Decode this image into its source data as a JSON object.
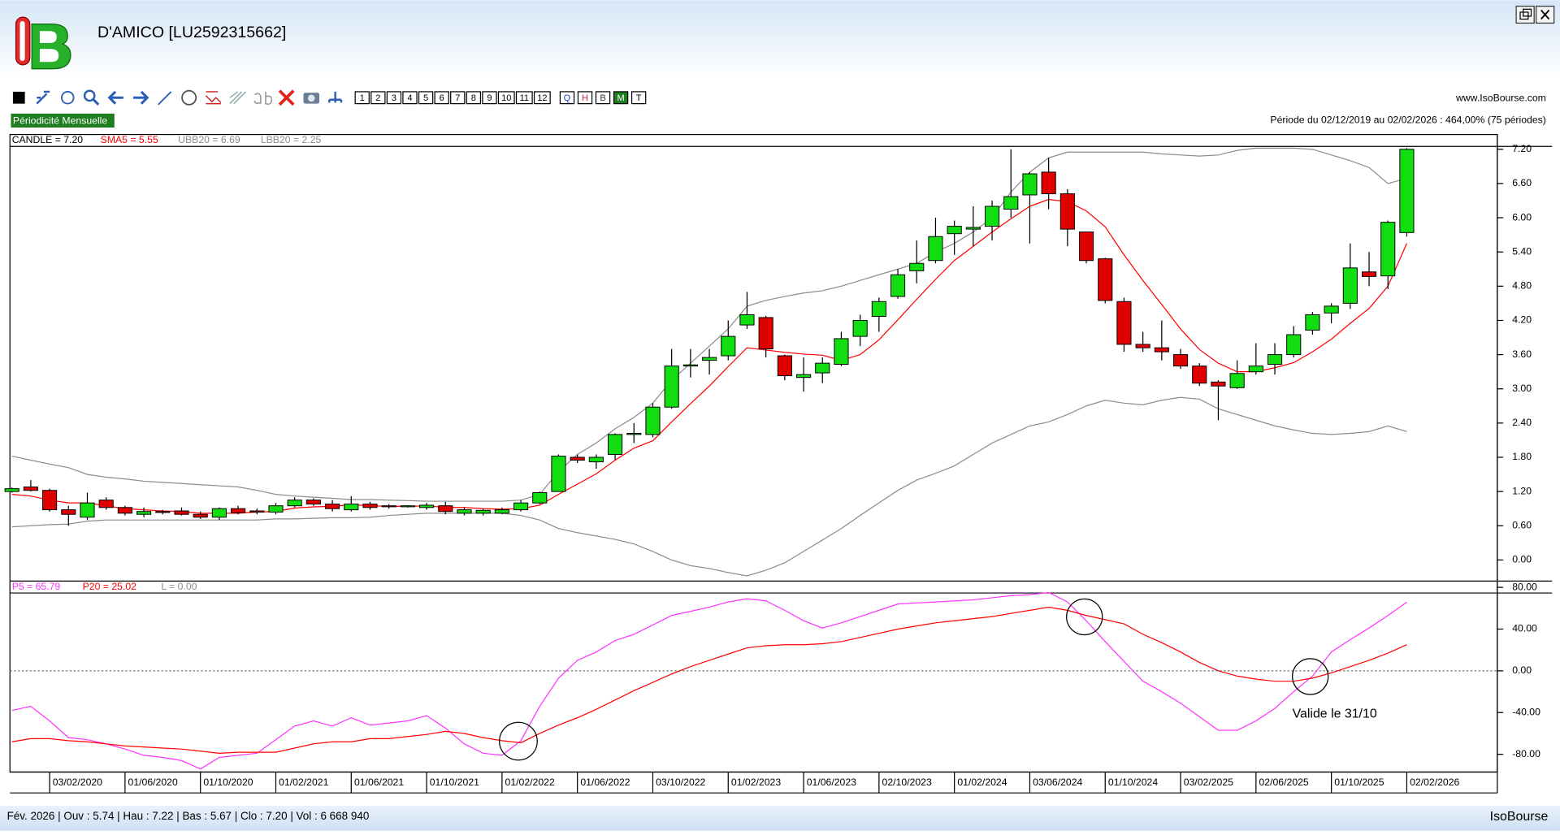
{
  "header": {
    "title": "D'AMICO [LU2592315662]",
    "site": "www.IsoBourse.com",
    "periodicity": "Périodicité Mensuelle",
    "period_info": "Période du 02/12/2019 au 02/02/2026 : 464,00% (75 périodes)"
  },
  "toolbar": {
    "periods": [
      "1",
      "2",
      "3",
      "4",
      "5",
      "6",
      "7",
      "8",
      "9",
      "10",
      "11",
      "12"
    ],
    "modes": [
      "Q",
      "H",
      "B",
      "M",
      "T"
    ],
    "active_mode": "M"
  },
  "status_bar": {
    "text": "Fév. 2026 | Ouv : 5.74 | Hau : 7.22 | Bas : 5.67 | Clo : 7.20 | Vol : 6 668 940",
    "brand": "IsoBourse"
  },
  "chart_data": [
    {
      "type": "candlestick",
      "candle_label": "CANDLE = 7.20",
      "up_color": "#11dd11",
      "down_color": "#e00000",
      "categories": [
        null,
        null,
        "03/02/2020",
        null,
        null,
        null,
        "01/06/2020",
        null,
        null,
        null,
        "01/10/2020",
        null,
        null,
        null,
        "01/02/2021",
        null,
        null,
        null,
        "01/06/2021",
        null,
        null,
        null,
        "01/10/2021",
        null,
        null,
        null,
        "01/02/2022",
        null,
        null,
        null,
        "01/06/2022",
        null,
        null,
        null,
        "03/10/2022",
        null,
        null,
        null,
        "01/02/2023",
        null,
        null,
        null,
        "01/06/2023",
        null,
        null,
        null,
        "02/10/2023",
        null,
        null,
        null,
        "01/02/2024",
        null,
        null,
        null,
        "03/06/2024",
        null,
        null,
        null,
        "01/10/2024",
        null,
        null,
        null,
        "03/02/2025",
        null,
        null,
        null,
        "02/06/2025",
        null,
        null,
        null,
        "01/10/2025",
        null,
        null,
        null,
        "02/02/2026"
      ],
      "open": [
        1.2,
        1.28,
        1.22,
        0.88,
        0.75,
        1.05,
        0.92,
        0.8,
        0.85,
        0.86,
        0.8,
        0.75,
        0.9,
        0.86,
        0.84,
        0.95,
        1.05,
        0.98,
        0.88,
        0.98,
        0.95,
        0.95,
        0.92,
        0.95,
        0.82,
        0.82,
        0.82,
        0.88,
        1.0,
        1.2,
        1.8,
        1.72,
        1.85,
        2.2,
        2.2,
        2.68,
        3.4,
        3.5,
        3.58,
        4.12,
        4.25,
        3.58,
        3.2,
        3.28,
        3.43,
        3.92,
        4.27,
        4.62,
        5.07,
        5.25,
        5.72,
        5.8,
        5.85,
        6.15,
        6.4,
        6.8,
        6.42,
        5.75,
        5.28,
        4.53,
        3.78,
        3.72,
        3.6,
        3.4,
        3.12,
        3.02,
        3.3,
        3.43,
        3.6,
        4.03,
        4.33,
        4.5,
        5.05,
        4.98,
        5.74
      ],
      "high": [
        1.27,
        1.4,
        1.25,
        0.95,
        1.18,
        1.1,
        0.95,
        0.92,
        0.88,
        0.92,
        0.85,
        0.92,
        0.95,
        0.9,
        1.0,
        1.1,
        1.08,
        1.05,
        1.12,
        1.02,
        0.98,
        0.96,
        1.0,
        1.02,
        0.92,
        0.9,
        0.92,
        1.05,
        1.2,
        1.85,
        1.85,
        1.85,
        2.22,
        2.4,
        2.75,
        3.7,
        3.7,
        3.7,
        4.2,
        4.7,
        4.28,
        3.6,
        3.55,
        3.55,
        4.0,
        4.3,
        4.6,
        5.1,
        5.6,
        6.0,
        5.95,
        6.2,
        6.3,
        7.2,
        6.8,
        7.05,
        6.5,
        5.75,
        5.3,
        4.6,
        4.0,
        4.2,
        3.7,
        3.45,
        3.15,
        3.5,
        3.8,
        3.8,
        4.1,
        4.35,
        4.5,
        5.55,
        5.4,
        5.95,
        7.22
      ],
      "low": [
        1.18,
        1.2,
        0.85,
        0.6,
        0.7,
        0.88,
        0.78,
        0.75,
        0.8,
        0.78,
        0.72,
        0.7,
        0.8,
        0.8,
        0.8,
        0.92,
        0.95,
        0.85,
        0.85,
        0.88,
        0.9,
        0.92,
        0.88,
        0.8,
        0.78,
        0.78,
        0.8,
        0.85,
        0.98,
        1.2,
        1.7,
        1.6,
        1.75,
        2.05,
        2.15,
        2.65,
        3.2,
        3.25,
        3.5,
        4.05,
        3.55,
        3.15,
        2.95,
        3.1,
        3.4,
        3.75,
        4.0,
        4.58,
        4.85,
        5.2,
        5.35,
        5.5,
        5.6,
        6.0,
        5.55,
        6.15,
        5.5,
        5.2,
        4.5,
        3.65,
        3.65,
        3.5,
        3.35,
        3.05,
        2.45,
        3.0,
        3.25,
        3.25,
        3.55,
        3.95,
        4.15,
        4.4,
        4.8,
        4.75,
        5.67
      ],
      "close": [
        1.25,
        1.22,
        0.88,
        0.8,
        1.0,
        0.92,
        0.82,
        0.85,
        0.84,
        0.8,
        0.75,
        0.9,
        0.83,
        0.84,
        0.95,
        1.05,
        0.98,
        0.9,
        0.98,
        0.92,
        0.94,
        0.95,
        0.96,
        0.85,
        0.88,
        0.87,
        0.88,
        1.0,
        1.18,
        1.82,
        1.75,
        1.8,
        2.2,
        2.22,
        2.68,
        3.4,
        3.42,
        3.55,
        3.92,
        4.3,
        3.7,
        3.23,
        3.25,
        3.45,
        3.88,
        4.2,
        4.53,
        5.0,
        5.2,
        5.67,
        5.85,
        5.83,
        6.2,
        6.37,
        6.77,
        6.42,
        5.8,
        5.25,
        4.55,
        3.78,
        3.72,
        3.65,
        3.4,
        3.1,
        3.05,
        3.27,
        3.4,
        3.6,
        3.95,
        4.3,
        4.45,
        5.12,
        4.97,
        5.92,
        7.2
      ],
      "series": [
        {
          "name": "SMA5 = 5.55",
          "color": "#ff0000",
          "values": [
            1.15,
            1.12,
            1.05,
            1.0,
            1.0,
            0.95,
            0.9,
            0.88,
            0.86,
            0.85,
            0.82,
            0.82,
            0.82,
            0.84,
            0.85,
            0.91,
            0.93,
            0.94,
            0.97,
            0.95,
            0.94,
            0.94,
            0.95,
            0.92,
            0.92,
            0.9,
            0.89,
            0.9,
            0.96,
            1.15,
            1.33,
            1.51,
            1.75,
            1.96,
            2.09,
            2.42,
            2.74,
            3.05,
            3.39,
            3.72,
            3.68,
            3.64,
            3.61,
            3.59,
            3.5,
            3.6,
            3.86,
            4.21,
            4.57,
            4.92,
            5.25,
            5.5,
            5.75,
            5.98,
            6.2,
            6.32,
            6.28,
            6.12,
            5.84,
            5.35,
            4.9,
            4.48,
            4.05,
            3.69,
            3.45,
            3.3,
            3.3,
            3.37,
            3.46,
            3.65,
            3.87,
            4.15,
            4.41,
            4.8,
            5.55
          ]
        },
        {
          "name": "UBB20 = 6.69",
          "color": "#8c8c8c",
          "values": [
            1.82,
            1.75,
            1.68,
            1.62,
            1.5,
            1.45,
            1.42,
            1.38,
            1.36,
            1.34,
            1.32,
            1.3,
            1.28,
            1.22,
            1.15,
            1.12,
            1.1,
            1.08,
            1.06,
            1.06,
            1.05,
            1.04,
            1.03,
            1.03,
            1.03,
            1.03,
            1.03,
            1.05,
            1.15,
            1.55,
            1.85,
            2.05,
            2.3,
            2.5,
            2.75,
            3.15,
            3.45,
            3.75,
            4.05,
            4.45,
            4.55,
            4.62,
            4.68,
            4.72,
            4.8,
            4.9,
            5.0,
            5.1,
            5.2,
            5.4,
            5.55,
            5.75,
            6.0,
            6.45,
            6.8,
            7.05,
            7.15,
            7.15,
            7.15,
            7.15,
            7.15,
            7.12,
            7.1,
            7.08,
            7.1,
            7.18,
            7.22,
            7.22,
            7.22,
            7.2,
            7.1,
            7.0,
            6.88,
            6.6,
            6.69
          ]
        },
        {
          "name": "LBB20 = 2.25",
          "color": "#8c8c8c",
          "values": [
            0.58,
            0.6,
            0.62,
            0.63,
            0.68,
            0.7,
            0.7,
            0.7,
            0.7,
            0.7,
            0.7,
            0.7,
            0.7,
            0.7,
            0.72,
            0.72,
            0.73,
            0.74,
            0.74,
            0.75,
            0.78,
            0.8,
            0.82,
            0.82,
            0.82,
            0.82,
            0.82,
            0.78,
            0.7,
            0.55,
            0.48,
            0.42,
            0.36,
            0.28,
            0.15,
            0.0,
            -0.1,
            -0.15,
            -0.22,
            -0.28,
            -0.18,
            -0.05,
            0.15,
            0.35,
            0.55,
            0.78,
            1.0,
            1.22,
            1.4,
            1.52,
            1.65,
            1.85,
            2.05,
            2.2,
            2.35,
            2.42,
            2.55,
            2.7,
            2.8,
            2.75,
            2.72,
            2.8,
            2.85,
            2.82,
            2.65,
            2.55,
            2.45,
            2.35,
            2.28,
            2.22,
            2.2,
            2.22,
            2.25,
            2.35,
            2.25
          ]
        }
      ],
      "ylim": [
        -0.37,
        7.25
      ],
      "yticks": [
        {
          "value": 0,
          "label": "0.00"
        },
        {
          "value": 0.6,
          "label": "0.60"
        },
        {
          "value": 1.2,
          "label": "1.20"
        },
        {
          "value": 1.8,
          "label": "1.80"
        },
        {
          "value": 2.4,
          "label": "2.40"
        },
        {
          "value": 3,
          "label": "3.00"
        },
        {
          "value": 3.6,
          "label": "3.60"
        },
        {
          "value": 4.2,
          "label": "4.20"
        },
        {
          "value": 4.8,
          "label": "4.80"
        },
        {
          "value": 5.4,
          "label": "5.40"
        },
        {
          "value": 6,
          "label": "6.00"
        },
        {
          "value": 6.6,
          "label": "6.60"
        },
        {
          "value": 7.2,
          "label": "7.20"
        }
      ],
      "grid": false
    },
    {
      "type": "line",
      "annotation": "Valide le 31/10",
      "series": [
        {
          "name": "P5 = 65.79",
          "color": "#ff33ff",
          "values": [
            -38,
            -34,
            -48,
            -64,
            -66,
            -70,
            -75,
            -81,
            -83,
            -86,
            -94,
            -83,
            -81,
            -79,
            -66,
            -53,
            -48,
            -53,
            -45,
            -52,
            -50,
            -48,
            -43,
            -55,
            -70,
            -79,
            -81,
            -67,
            -34,
            -7,
            10,
            18,
            29,
            35,
            44,
            53,
            57,
            61,
            66,
            69,
            67,
            58,
            48,
            41,
            46,
            52,
            58,
            64,
            65,
            66,
            67,
            68,
            70,
            72,
            73,
            75,
            66,
            48,
            28,
            9,
            -10,
            -20,
            -31,
            -44,
            -57,
            -57,
            -48,
            -36,
            -20,
            -5,
            18,
            30,
            41,
            53,
            65.79
          ]
        },
        {
          "name": "P20 = 25.02",
          "color": "#ff0000",
          "values": [
            -68,
            -65,
            -65,
            -67,
            -68,
            -70,
            -72,
            -73,
            -74,
            -75,
            -77,
            -79,
            -78,
            -78,
            -78,
            -74,
            -70,
            -68,
            -68,
            -65,
            -65,
            -63,
            -61,
            -58,
            -60,
            -64,
            -67,
            -69,
            -60,
            -52,
            -45,
            -37,
            -28,
            -19,
            -11,
            -3,
            4,
            10,
            16,
            22,
            24,
            25,
            25,
            26,
            28,
            32,
            36,
            40,
            43,
            46,
            48,
            50,
            52,
            55,
            58,
            61,
            58,
            53,
            49,
            45,
            35,
            27,
            18,
            8,
            0,
            -5,
            -8,
            -10,
            -10,
            -7,
            -2,
            4,
            10,
            17,
            25.02
          ]
        }
      ],
      "level": {
        "name": "L = 0.00",
        "value": 0,
        "color": "#8c8c8c"
      },
      "ylim": [
        -97,
        86
      ],
      "yticks": [
        {
          "value": -80,
          "label": "-80.00"
        },
        {
          "value": -40,
          "label": "-40.00"
        },
        {
          "value": 0,
          "label": "0.00"
        },
        {
          "value": 40,
          "label": "40.00"
        },
        {
          "value": 80,
          "label": "80.00"
        }
      ],
      "grid": false
    }
  ]
}
